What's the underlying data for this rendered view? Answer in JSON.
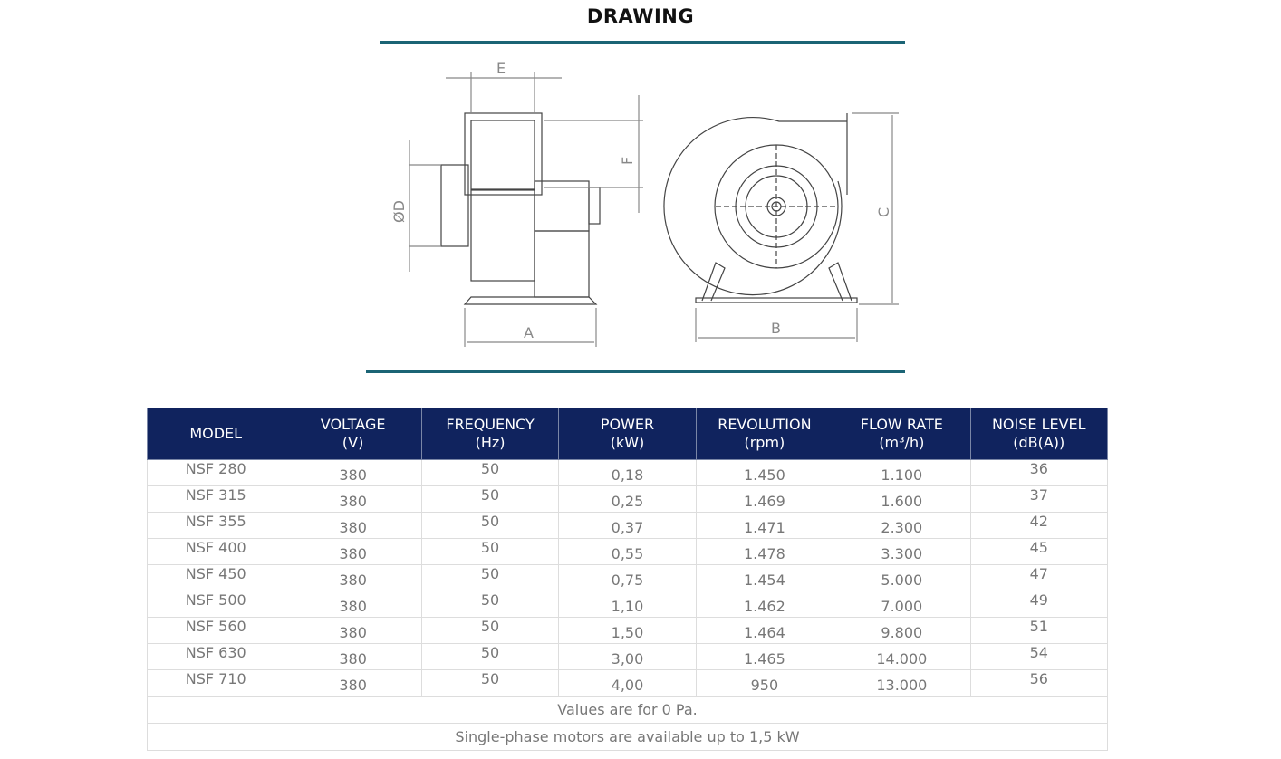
{
  "title": "DRAWING",
  "drawing": {
    "labels": {
      "a": "A",
      "b": "B",
      "c": "C",
      "d": "ØD",
      "e": "E",
      "f": "F"
    }
  },
  "colors": {
    "header_bg": "#10235e",
    "rule": "#1b6475"
  },
  "table": {
    "headers": [
      {
        "l1": "MODEL",
        "l2": ""
      },
      {
        "l1": "VOLTAGE",
        "l2": "(V)"
      },
      {
        "l1": "FREQUENCY",
        "l2": "(Hz)"
      },
      {
        "l1": "POWER",
        "l2": "(kW)"
      },
      {
        "l1": "REVOLUTION",
        "l2": "(rpm)"
      },
      {
        "l1": "FLOW RATE",
        "l2": "(m³/h)"
      },
      {
        "l1": "NOISE LEVEL",
        "l2": "(dB(A))"
      }
    ],
    "rows": [
      [
        "NSF 280",
        "380",
        "50",
        "0,18",
        "1.450",
        "1.100",
        "36"
      ],
      [
        "NSF 315",
        "380",
        "50",
        "0,25",
        "1.469",
        "1.600",
        "37"
      ],
      [
        "NSF 355",
        "380",
        "50",
        "0,37",
        "1.471",
        "2.300",
        "42"
      ],
      [
        "NSF 400",
        "380",
        "50",
        "0,55",
        "1.478",
        "3.300",
        "45"
      ],
      [
        "NSF 450",
        "380",
        "50",
        "0,75",
        "1.454",
        "5.000",
        "47"
      ],
      [
        "NSF 500",
        "380",
        "50",
        "1,10",
        "1.462",
        "7.000",
        "49"
      ],
      [
        "NSF 560",
        "380",
        "50",
        "1,50",
        "1.464",
        "9.800",
        "51"
      ],
      [
        "NSF 630",
        "380",
        "50",
        "3,00",
        "1.465",
        "14.000",
        "54"
      ],
      [
        "NSF 710",
        "380",
        "50",
        "4,00",
        "950",
        "13.000",
        "56"
      ]
    ],
    "notes": [
      "Values are for 0 Pa.",
      "Single-phase motors are available up to 1,5 kW"
    ]
  }
}
